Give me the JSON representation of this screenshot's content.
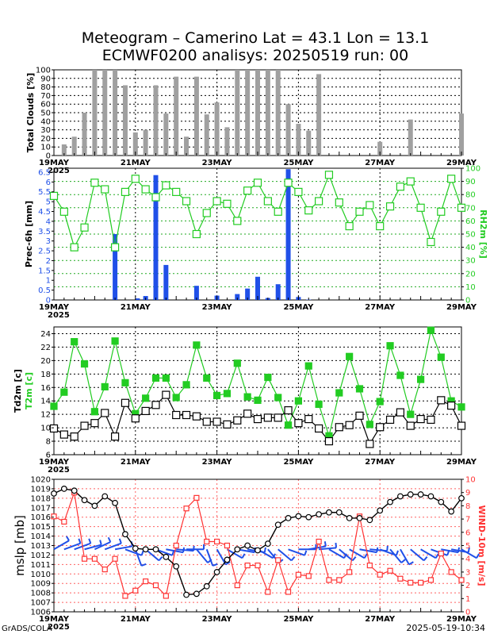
{
  "header": {
    "title_line1": "Meteogram – Camerino Lat = 43.1 Lon = 13.1",
    "title_line2": "ECMWF0200 analisys: 20250519 run: 00"
  },
  "footer": {
    "left": "GrADS/COLA",
    "right": "2025-05-19-10:34"
  },
  "colors": {
    "clouds": "#a0a0a0",
    "precip": "#2050e8",
    "rh": "#22cc22",
    "td": "#000000",
    "t2m": "#22cc22",
    "mslp": "#000000",
    "wind": "#ff3333",
    "barbs": "#2050e8"
  },
  "chart_data": [
    {
      "id": "clouds",
      "type": "bar",
      "ylabel": "Total Clouds [%]",
      "ylim": [
        0,
        100
      ],
      "yticks": [
        0,
        10,
        20,
        30,
        40,
        50,
        60,
        70,
        80,
        90,
        100
      ],
      "x": [
        0.25,
        0.5,
        0.75,
        1,
        1.25,
        1.5,
        1.75,
        2,
        2.25,
        2.5,
        2.75,
        3,
        3.25,
        3.5,
        3.75,
        4,
        4.25,
        4.5,
        4.75,
        5,
        5.25,
        5.5,
        5.75,
        6,
        6.25,
        6.5,
        6.75,
        7,
        7.25,
        7.5,
        7.75,
        8,
        8.25,
        8.5,
        8.75,
        9,
        9.25,
        9.5,
        9.75,
        10
      ],
      "values": [
        13,
        22,
        50,
        100,
        100,
        100,
        82,
        27,
        30,
        82,
        49,
        92,
        22,
        92,
        48,
        62,
        33,
        100,
        100,
        100,
        100,
        100,
        60,
        37,
        29,
        95,
        0,
        0,
        0,
        0,
        0,
        16,
        0,
        0,
        42,
        0,
        0,
        0,
        0,
        49
      ]
    },
    {
      "id": "precip-rh",
      "type": "bar+line",
      "ylabel": "Prec-6h [mm]",
      "ylabel_right": "RH2m [%]",
      "ylim": [
        0,
        6.7
      ],
      "ylim_right": [
        0,
        100
      ],
      "yticks": [
        "0",
        "0.5",
        "1",
        "1.5",
        "2",
        "2.5",
        "3",
        "3.5",
        "4",
        "4.5",
        "5",
        "5.5",
        "6",
        "6.5"
      ],
      "yticks_right": [
        0,
        10,
        20,
        30,
        40,
        50,
        60,
        70,
        80,
        90,
        100
      ],
      "precip_x": [
        1.5,
        2.05,
        2.25,
        2.5,
        2.75,
        3.5,
        4,
        4.5,
        4.75,
        5,
        5.25,
        5.5,
        5.75,
        6,
        6.25
      ],
      "precip": [
        3.35,
        0.08,
        0.2,
        6.35,
        1.78,
        0.72,
        0.22,
        0.3,
        0.58,
        1.18,
        0.1,
        0.8,
        6.65,
        0.15,
        0.02
      ],
      "rh_x": [
        0,
        0.25,
        0.5,
        0.75,
        1,
        1.25,
        1.5,
        1.75,
        2,
        2.25,
        2.5,
        2.75,
        3,
        3.25,
        3.5,
        3.75,
        4,
        4.25,
        4.5,
        4.75,
        5,
        5.25,
        5.5,
        5.75,
        6,
        6.25,
        6.5,
        6.75,
        7,
        7.25,
        7.5,
        7.75,
        8,
        8.25,
        8.5,
        8.75,
        9,
        9.25,
        9.5,
        9.75,
        10
      ],
      "rh": [
        79,
        67,
        40,
        55,
        89,
        84,
        40,
        82,
        92,
        84,
        78,
        87,
        82,
        75,
        50,
        66,
        75,
        73,
        60,
        83,
        89,
        75,
        67,
        89,
        82,
        68,
        75,
        95,
        74,
        56,
        67,
        72,
        56,
        71,
        86,
        90,
        70,
        44,
        67,
        92,
        70
      ]
    },
    {
      "id": "temperature",
      "type": "line",
      "ylabel": "Td2m [c]",
      "ylabel2": "T2m [c]",
      "ylim": [
        6,
        25
      ],
      "yticks": [
        6,
        8,
        10,
        12,
        14,
        16,
        18,
        20,
        22,
        24
      ],
      "x": [
        0,
        0.25,
        0.5,
        0.75,
        1,
        1.25,
        1.5,
        1.75,
        2,
        2.25,
        2.5,
        2.75,
        3,
        3.25,
        3.5,
        3.75,
        4,
        4.25,
        4.5,
        4.75,
        5,
        5.25,
        5.5,
        5.75,
        6,
        6.25,
        6.5,
        6.75,
        7,
        7.25,
        7.5,
        7.75,
        8,
        8.25,
        8.5,
        8.75,
        9,
        9.25,
        9.5,
        9.75,
        10
      ],
      "t2m": [
        13.2,
        15.3,
        22.8,
        19.5,
        12.4,
        16.1,
        22.9,
        16.7,
        12.1,
        14.4,
        17.4,
        17.4,
        14.5,
        16.4,
        22.3,
        17.4,
        14.8,
        15.1,
        19.6,
        14.6,
        14.1,
        17.5,
        14.5,
        10.4,
        14.0,
        19.2,
        13.5,
        8.8,
        15.2,
        20.6,
        15.8,
        10.5,
        13.9,
        22.2,
        17.8,
        12.0,
        17.2,
        24.5,
        20.5,
        14.0,
        13.1
      ],
      "td2m": [
        9.9,
        9.0,
        8.7,
        10.3,
        10.7,
        12.2,
        8.7,
        13.7,
        11.4,
        12.5,
        13.4,
        14.9,
        11.9,
        11.9,
        11.7,
        10.9,
        10.9,
        10.5,
        11.1,
        12.1,
        11.3,
        11.5,
        11.5,
        12.6,
        10.7,
        11.3,
        9.9,
        8.0,
        10.1,
        10.4,
        11.8,
        7.6,
        10.1,
        11.2,
        12.3,
        10.3,
        11.3,
        11.2,
        14.1,
        13.3,
        10.3
      ]
    },
    {
      "id": "pressure-wind",
      "type": "line",
      "ylabel": "mslp [mb]",
      "ylabel_right": "WIND-10m [m/s]",
      "ylim": [
        1006,
        1020
      ],
      "ylim_right": [
        0,
        10
      ],
      "yticks": [
        1006,
        1007,
        1008,
        1009,
        1010,
        1011,
        1012,
        1013,
        1014,
        1015,
        1016,
        1017,
        1018,
        1019,
        1020
      ],
      "yticks_right": [
        0,
        1,
        2,
        3,
        4,
        5,
        6,
        7,
        8,
        9,
        10
      ],
      "x": [
        0,
        0.25,
        0.5,
        0.75,
        1,
        1.25,
        1.5,
        1.75,
        2,
        2.25,
        2.5,
        2.75,
        3,
        3.25,
        3.5,
        3.75,
        4,
        4.25,
        4.5,
        4.75,
        5,
        5.25,
        5.5,
        5.75,
        6,
        6.25,
        6.5,
        6.75,
        7,
        7.25,
        7.5,
        7.75,
        8,
        8.25,
        8.5,
        8.75,
        9,
        9.25,
        9.5,
        9.75,
        10
      ],
      "mslp": [
        1018.5,
        1019.0,
        1018.8,
        1017.8,
        1017.2,
        1018.2,
        1017.5,
        1014.2,
        1012.7,
        1012.6,
        1012.6,
        1011.8,
        1010.8,
        1007.8,
        1007.9,
        1008.7,
        1010.2,
        1011.5,
        1012.6,
        1013.0,
        1012.5,
        1013.2,
        1015.2,
        1015.9,
        1016.1,
        1016.0,
        1016.3,
        1016.5,
        1016.5,
        1015.9,
        1015.9,
        1015.7,
        1016.7,
        1017.6,
        1018.2,
        1018.4,
        1018.4,
        1018.2,
        1017.6,
        1016.6,
        1018.0
      ],
      "wind": [
        7.2,
        6.8,
        9.0,
        4.0,
        4.0,
        3.2,
        4.0,
        1.2,
        1.6,
        2.3,
        2.0,
        1.2,
        5.0,
        7.8,
        8.6,
        5.3,
        5.3,
        5.0,
        2.0,
        3.5,
        3.5,
        1.5,
        3.9,
        1.5,
        2.8,
        2.7,
        5.3,
        2.4,
        2.4,
        3.0,
        7.2,
        3.5,
        2.8,
        3.1,
        2.5,
        2.2,
        2.2,
        2.4,
        4.4,
        3.0,
        2.4
      ],
      "barb_dir_deg": [
        60,
        70,
        70,
        75,
        65,
        70,
        80,
        110,
        160,
        130,
        110,
        100,
        95,
        90,
        140,
        160,
        150,
        120,
        100,
        100,
        120,
        140,
        130,
        110,
        90,
        80,
        85,
        120,
        130,
        120,
        100,
        95,
        110,
        140,
        150,
        130,
        120,
        110,
        100,
        100,
        120
      ]
    }
  ],
  "xaxis": {
    "ticks": [
      {
        "pos": 0,
        "label": "19MAY",
        "sub": "2025"
      },
      {
        "pos": 2,
        "label": "21MAY",
        "sub": ""
      },
      {
        "pos": 4,
        "label": "23MAY",
        "sub": ""
      },
      {
        "pos": 6,
        "label": "25MAY",
        "sub": ""
      },
      {
        "pos": 8,
        "label": "27MAY",
        "sub": ""
      },
      {
        "pos": 10,
        "label": "29MAY",
        "sub": ""
      }
    ]
  }
}
